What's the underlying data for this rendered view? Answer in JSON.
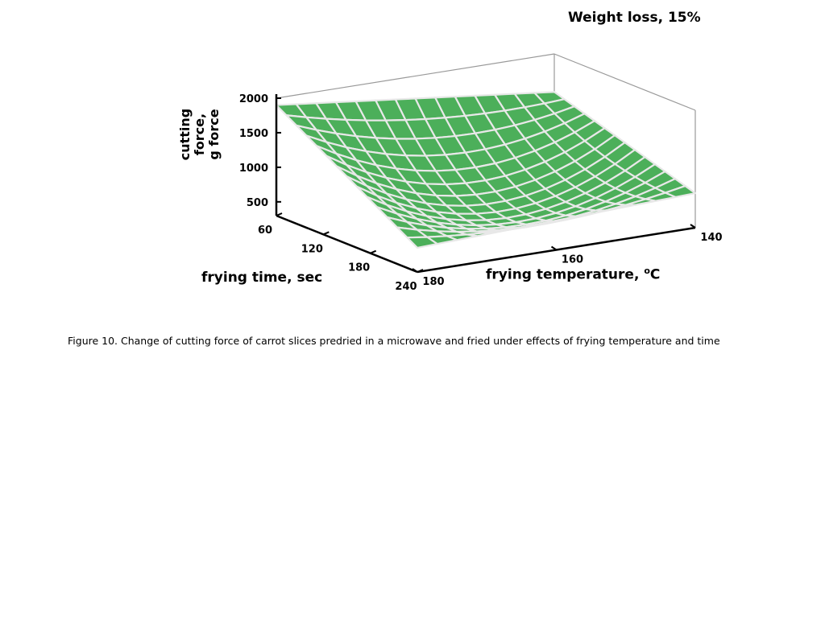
{
  "chart_data": {
    "type": "surface",
    "title": "Weight loss, 15%",
    "zlabel_line1": "cutting force,",
    "zlabel_line2": "g force",
    "xlabel": "frying time, sec",
    "ylabel_prefix": "frying temperature, ",
    "ylabel_sup": "o",
    "ylabel_suffix": "C",
    "z_ticks": [
      "2000",
      "1500",
      "1000",
      "500"
    ],
    "x_ticks": [
      "60",
      "120",
      "180",
      "240"
    ],
    "y_ticks": [
      "140",
      "160",
      "180"
    ],
    "zlim": [
      300,
      2000
    ],
    "x_values": [
      60,
      240
    ],
    "y_values": [
      140,
      180
    ],
    "surface_corners": {
      "time60_temp140": 1900,
      "time60_temp180": 1450,
      "time240_temp140": 650,
      "time240_temp180": 800
    },
    "surface_minimum": 330,
    "colors": {
      "surface": "#4caf5a",
      "mesh": "#e8e8e8",
      "frame": "#999999",
      "axis": "#000000"
    }
  },
  "caption": "Figure 10. Change of cutting force of carrot slices predried in a microwave and fried under effects of frying temperature and time"
}
